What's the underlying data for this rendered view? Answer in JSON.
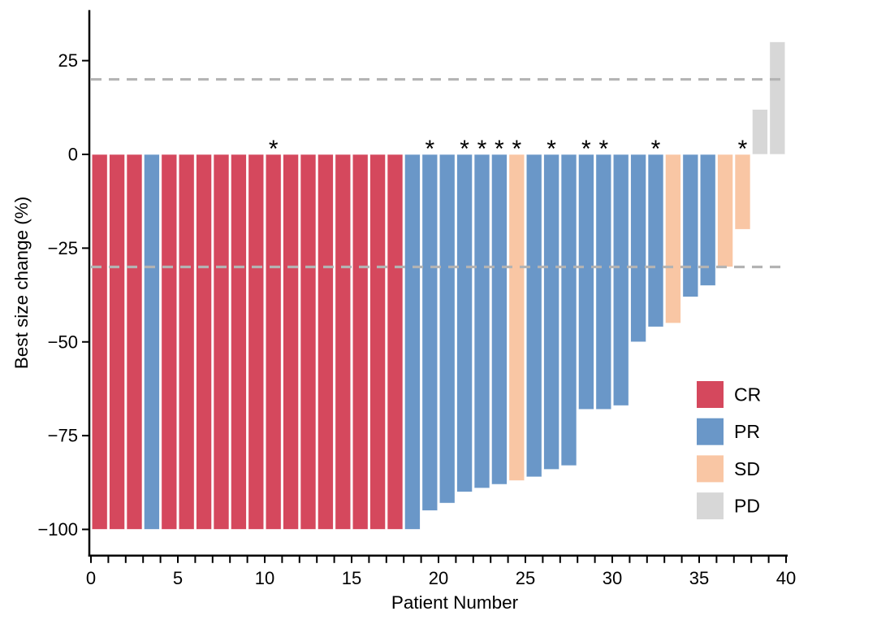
{
  "chart_data": {
    "type": "bar",
    "title": "",
    "xlabel": "Patient Number",
    "ylabel": "Best size change (%)",
    "xlim": [
      0,
      40
    ],
    "ylim": [
      -107,
      38.5
    ],
    "x_tick_values": [
      0,
      5,
      10,
      15,
      20,
      25,
      30,
      35,
      40
    ],
    "x_tick_labels": [
      "0",
      "5",
      "10",
      "15",
      "20",
      "25",
      "30",
      "35",
      "40"
    ],
    "x_minor_tick_step": 1,
    "y_tick_values": [
      25,
      0,
      -25,
      -50,
      -75,
      -100
    ],
    "y_tick_labels": [
      "25",
      "0",
      "−25",
      "−50",
      "−75",
      "−100"
    ],
    "grid": "off",
    "annotation_symbol": "*",
    "reference_lines": [
      {
        "y": 20,
        "style": "dashed",
        "color": "#B3B3B3"
      },
      {
        "y": -30,
        "style": "dashed",
        "color": "#B3B3B3"
      }
    ],
    "legend": {
      "position": "inside lower-right",
      "items": [
        {
          "label": "CR",
          "color": "#D5485D"
        },
        {
          "label": "PR",
          "color": "#6A97C8"
        },
        {
          "label": "SD",
          "color": "#F9C6A4"
        },
        {
          "label": "PD",
          "color": "#D7D7D7"
        }
      ]
    },
    "bars": [
      {
        "patient": 1,
        "value": -100,
        "response": "CR",
        "starred": false
      },
      {
        "patient": 2,
        "value": -100,
        "response": "CR",
        "starred": false
      },
      {
        "patient": 3,
        "value": -100,
        "response": "CR",
        "starred": false
      },
      {
        "patient": 4,
        "value": -100,
        "response": "PR",
        "starred": false
      },
      {
        "patient": 5,
        "value": -100,
        "response": "CR",
        "starred": false
      },
      {
        "patient": 6,
        "value": -100,
        "response": "CR",
        "starred": false
      },
      {
        "patient": 7,
        "value": -100,
        "response": "CR",
        "starred": false
      },
      {
        "patient": 8,
        "value": -100,
        "response": "CR",
        "starred": false
      },
      {
        "patient": 9,
        "value": -100,
        "response": "CR",
        "starred": false
      },
      {
        "patient": 10,
        "value": -100,
        "response": "CR",
        "starred": false
      },
      {
        "patient": 11,
        "value": -100,
        "response": "CR",
        "starred": true
      },
      {
        "patient": 12,
        "value": -100,
        "response": "CR",
        "starred": false
      },
      {
        "patient": 13,
        "value": -100,
        "response": "CR",
        "starred": false
      },
      {
        "patient": 14,
        "value": -100,
        "response": "CR",
        "starred": false
      },
      {
        "patient": 15,
        "value": -100,
        "response": "CR",
        "starred": false
      },
      {
        "patient": 16,
        "value": -100,
        "response": "CR",
        "starred": false
      },
      {
        "patient": 17,
        "value": -100,
        "response": "CR",
        "starred": false
      },
      {
        "patient": 18,
        "value": -100,
        "response": "CR",
        "starred": false
      },
      {
        "patient": 19,
        "value": -100,
        "response": "PR",
        "starred": false
      },
      {
        "patient": 20,
        "value": -95,
        "response": "PR",
        "starred": true
      },
      {
        "patient": 21,
        "value": -93,
        "response": "PR",
        "starred": false
      },
      {
        "patient": 22,
        "value": -90,
        "response": "PR",
        "starred": true
      },
      {
        "patient": 23,
        "value": -89,
        "response": "PR",
        "starred": true
      },
      {
        "patient": 24,
        "value": -88,
        "response": "PR",
        "starred": true
      },
      {
        "patient": 25,
        "value": -87,
        "response": "SD",
        "starred": true
      },
      {
        "patient": 26,
        "value": -86,
        "response": "PR",
        "starred": false
      },
      {
        "patient": 27,
        "value": -84,
        "response": "PR",
        "starred": true
      },
      {
        "patient": 28,
        "value": -83,
        "response": "PR",
        "starred": false
      },
      {
        "patient": 29,
        "value": -68,
        "response": "PR",
        "starred": true
      },
      {
        "patient": 30,
        "value": -68,
        "response": "PR",
        "starred": true
      },
      {
        "patient": 31,
        "value": -67,
        "response": "PR",
        "starred": false
      },
      {
        "patient": 32,
        "value": -50,
        "response": "PR",
        "starred": false
      },
      {
        "patient": 33,
        "value": -46,
        "response": "PR",
        "starred": true
      },
      {
        "patient": 34,
        "value": -45,
        "response": "SD",
        "starred": false
      },
      {
        "patient": 35,
        "value": -38,
        "response": "PR",
        "starred": false
      },
      {
        "patient": 36,
        "value": -35,
        "response": "PR",
        "starred": false
      },
      {
        "patient": 37,
        "value": -30,
        "response": "SD",
        "starred": false
      },
      {
        "patient": 38,
        "value": -20,
        "response": "SD",
        "starred": true
      },
      {
        "patient": 39,
        "value": 12,
        "response": "PD",
        "starred": false
      },
      {
        "patient": 40,
        "value": 30,
        "response": "PD",
        "starred": false
      }
    ]
  }
}
